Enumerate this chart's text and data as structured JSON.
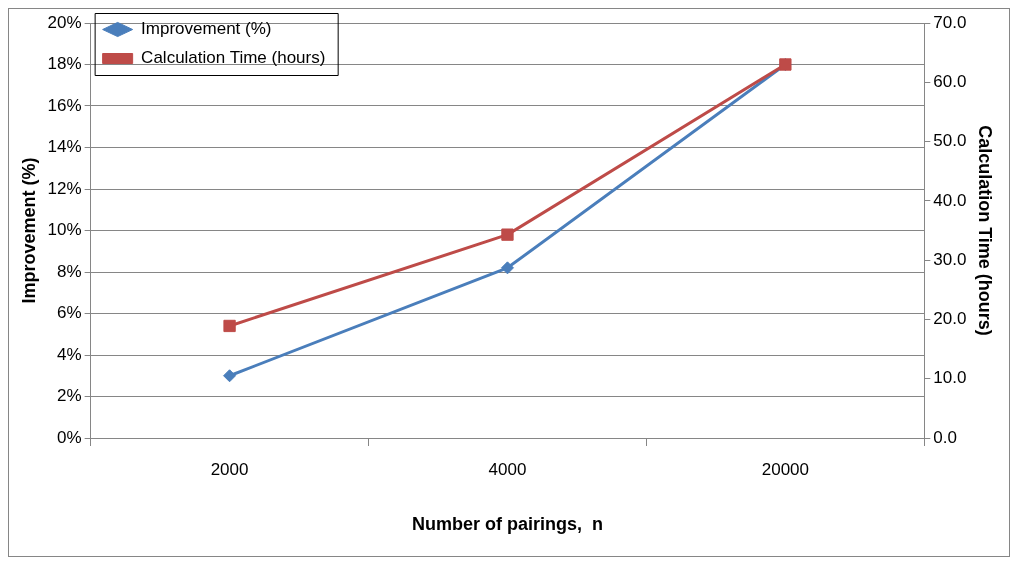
{
  "chart_data": {
    "type": "line",
    "categories": [
      "2000",
      "4000",
      "20000"
    ],
    "xlabel": "Number of pairings,  n",
    "ylabel": "Improvement (%)",
    "y2label": "Calculation Time (hours)",
    "series": [
      {
        "name": "Improvement (%)",
        "color": "#4a7ebb",
        "values": [
          3.0,
          8.2,
          18.0
        ],
        "marker": "diamond"
      },
      {
        "name": "Calculation Time (hours)",
        "color": "#be4b48",
        "values": [
          18.9,
          34.3,
          63.0
        ],
        "marker": "square",
        "axis": "y2"
      }
    ],
    "ylim": [
      0,
      20
    ],
    "yticks": [
      {
        "value": 0,
        "label": "0%"
      },
      {
        "value": 2,
        "label": "2%"
      },
      {
        "value": 4,
        "label": "4%"
      },
      {
        "value": 6,
        "label": "6%"
      },
      {
        "value": 8,
        "label": "8%"
      },
      {
        "value": 10,
        "label": "10%"
      },
      {
        "value": 12,
        "label": "12%"
      },
      {
        "value": 14,
        "label": "14%"
      },
      {
        "value": 16,
        "label": "16%"
      },
      {
        "value": 18,
        "label": "18%"
      },
      {
        "value": 20,
        "label": "20%"
      }
    ],
    "y2lim": [
      0,
      70
    ],
    "y2ticks": [
      {
        "value": 0,
        "label": "0.0"
      },
      {
        "value": 10,
        "label": "10.0"
      },
      {
        "value": 20,
        "label": "20.0"
      },
      {
        "value": 30,
        "label": "30.0"
      },
      {
        "value": 40,
        "label": "40.0"
      },
      {
        "value": 50,
        "label": "50.0"
      },
      {
        "value": 60,
        "label": "60.0"
      },
      {
        "value": 70,
        "label": "70.0"
      }
    ],
    "grid": "y",
    "legend": "top left"
  }
}
